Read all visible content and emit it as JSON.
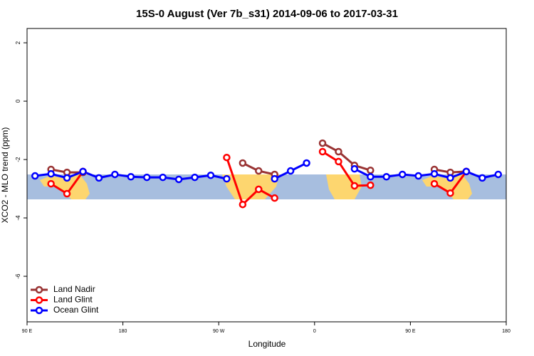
{
  "chart_data": {
    "type": "line",
    "title": "15S-0 August (Ver 7b_s31)   2014-09-06 to 2017-03-31",
    "x_label": "Longitude",
    "y_label": "XCO2 - MLO trend (ppm)",
    "x": [
      97.5,
      112.5,
      127.5,
      142.5,
      157.5,
      172.5,
      187.5,
      202.5,
      217.5,
      232.5,
      247.5,
      262.5,
      277.5,
      292.5,
      307.5,
      322.5,
      337.5,
      352.5,
      367.5,
      382.5,
      397.5,
      412.5,
      427.5,
      442.5,
      457.5,
      472.5,
      487.5,
      502.5,
      517.5,
      532.5
    ],
    "xlim": [
      90,
      540
    ],
    "xticks": [
      {
        "value": 90,
        "label": "90 E"
      },
      180,
      {
        "value": 270,
        "label": "90 W"
      },
      {
        "value": 360,
        "label": "0"
      },
      {
        "value": 450,
        "label": "90 E"
      },
      {
        "value": 540,
        "label": "180"
      }
    ],
    "ylim": [
      -7.56,
      2.49
    ],
    "yticks": [
      2,
      0,
      -2,
      -4,
      -6
    ],
    "legend": "bottom-left",
    "series": [
      {
        "name": "Land Nadir",
        "color": "#993333",
        "values": [
          null,
          -2.34,
          -2.44,
          -2.44,
          null,
          null,
          null,
          null,
          null,
          null,
          null,
          null,
          null,
          -2.12,
          -2.39,
          -2.51,
          null,
          null,
          -1.44,
          -1.73,
          -2.2,
          -2.37,
          null,
          null,
          null,
          -2.34,
          -2.44,
          -2.41,
          null,
          null
        ]
      },
      {
        "name": "Land Glint",
        "color": "#ff0000",
        "values": [
          null,
          -2.83,
          -3.17,
          -2.41,
          null,
          null,
          null,
          null,
          null,
          null,
          null,
          null,
          -1.93,
          -3.54,
          -3.02,
          -3.32,
          null,
          null,
          -1.73,
          -2.07,
          -2.9,
          -2.88,
          null,
          null,
          null,
          -2.83,
          -3.15,
          -2.41,
          null,
          null
        ]
      },
      {
        "name": "Ocean Glint",
        "color": "#0000ff",
        "values": [
          -2.56,
          -2.49,
          -2.63,
          -2.41,
          -2.63,
          -2.51,
          -2.59,
          -2.61,
          -2.61,
          -2.68,
          -2.61,
          -2.54,
          -2.66,
          null,
          null,
          -2.66,
          -2.39,
          -2.12,
          null,
          null,
          -2.32,
          -2.59,
          -2.59,
          -2.51,
          -2.56,
          -2.49,
          -2.63,
          -2.41,
          -2.63,
          -2.51
        ]
      }
    ]
  }
}
